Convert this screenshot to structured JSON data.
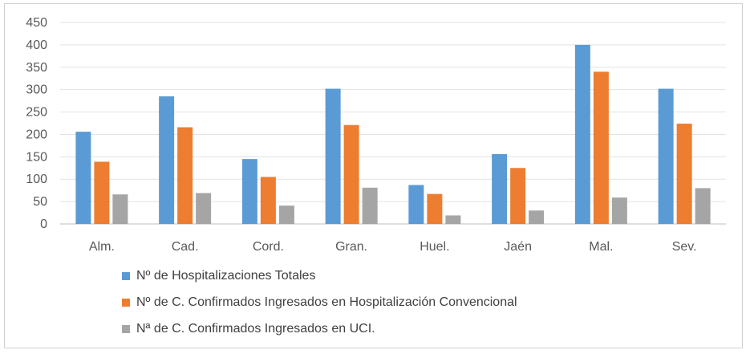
{
  "chart_data": {
    "type": "bar",
    "title": "",
    "xlabel": "",
    "ylabel": "",
    "ylim": [
      0,
      450
    ],
    "yticks": [
      0,
      50,
      100,
      150,
      200,
      250,
      300,
      350,
      400,
      450
    ],
    "grid": true,
    "legend_position": "bottom",
    "categories": [
      "Alm.",
      "Cad.",
      "Cord.",
      "Gran.",
      "Huel.",
      "Jaén",
      "Mal.",
      "Sev."
    ],
    "series": [
      {
        "name": "Nº de Hospitalizaciones Totales",
        "color": "#5B9BD5",
        "values": [
          206,
          285,
          145,
          302,
          87,
          156,
          400,
          302
        ]
      },
      {
        "name": "Nº de C. Confirmados Ingresados en Hospitalización Convencional",
        "color": "#ED7D31",
        "values": [
          139,
          216,
          105,
          221,
          67,
          125,
          340,
          224
        ]
      },
      {
        "name": "Nª de C. Confirmados Ingresados en UCI.",
        "color": "#A5A5A5",
        "values": [
          66,
          69,
          41,
          81,
          19,
          30,
          59,
          80
        ]
      }
    ]
  }
}
